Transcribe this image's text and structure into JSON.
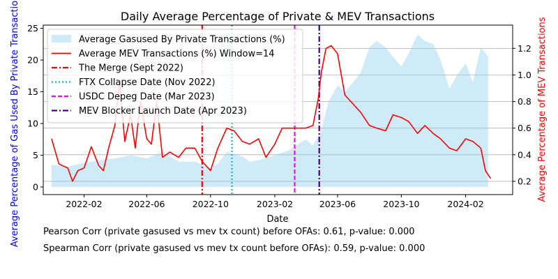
{
  "chart_data": {
    "type": "line",
    "title": "Daily Average Percentage of Private & MEV Transactions",
    "xlabel": "Date",
    "ylabel_left": "Average Percentage of Gas Used By Private Transactions",
    "ylabel_right": "Average Percentage of MEV Transactions",
    "x_ticks": [
      "2022-02",
      "2022-06",
      "2022-10",
      "2023-02",
      "2023-06",
      "2023-10",
      "2024-02"
    ],
    "x_range": [
      "2021-11-15",
      "2024-05-01"
    ],
    "y_left": {
      "range": [
        -1.2,
        25.5
      ],
      "ticks": [
        "0",
        "5",
        "10",
        "15",
        "20",
        "25"
      ]
    },
    "y_right": {
      "range": [
        0.1,
        1.375
      ],
      "ticks": [
        "0.2",
        "0.4",
        "0.6",
        "0.8",
        "1.0",
        "1.2"
      ]
    },
    "grid": "horizontal gridlines at right-axis ticks",
    "legend_position": "top-left",
    "series": [
      {
        "name": "Average Gasused By Private Transactions (%)",
        "kind": "area",
        "axis": "left",
        "color": "#87ceeb",
        "x": [
          "2021-12-01",
          "2022-01-01",
          "2022-02-01",
          "2022-03-01",
          "2022-04-01",
          "2022-05-01",
          "2022-06-01",
          "2022-07-01",
          "2022-08-01",
          "2022-09-01",
          "2022-09-15",
          "2022-10-01",
          "2022-10-15",
          "2022-11-01",
          "2022-11-15",
          "2022-12-01",
          "2022-12-15",
          "2023-01-01",
          "2023-02-01",
          "2023-03-01",
          "2023-04-01",
          "2023-04-15",
          "2023-05-01",
          "2023-05-15",
          "2023-06-01",
          "2023-06-15",
          "2023-07-01",
          "2023-07-15",
          "2023-08-01",
          "2023-08-15",
          "2023-09-01",
          "2023-09-15",
          "2023-10-01",
          "2023-10-15",
          "2023-11-01",
          "2023-11-15",
          "2023-12-01",
          "2023-12-15",
          "2024-01-01",
          "2024-01-15",
          "2024-02-01",
          "2024-02-15",
          "2024-03-01",
          "2024-03-15"
        ],
        "values": [
          3.5,
          3.2,
          3.8,
          4.2,
          4.5,
          5.0,
          4.5,
          5.5,
          4.0,
          4.0,
          3.5,
          3.0,
          3.6,
          5.5,
          5.2,
          4.8,
          4.0,
          4.2,
          5.0,
          5.8,
          7.5,
          6.5,
          9.0,
          13.5,
          16.0,
          15.0,
          16.5,
          18.0,
          22.0,
          23.0,
          22.0,
          20.5,
          19.0,
          21.0,
          24.0,
          23.0,
          22.5,
          20.0,
          15.5,
          17.5,
          19.5,
          16.5,
          22.0,
          20.5
        ]
      },
      {
        "name": "Average MEV Transactions (%) Window=14",
        "kind": "line",
        "axis": "right",
        "color": "#ff0000",
        "x": [
          "2021-12-01",
          "2021-12-15",
          "2022-01-01",
          "2022-01-10",
          "2022-01-20",
          "2022-02-01",
          "2022-02-15",
          "2022-03-01",
          "2022-03-10",
          "2022-03-20",
          "2022-04-01",
          "2022-04-10",
          "2022-04-20",
          "2022-05-01",
          "2022-05-10",
          "2022-05-20",
          "2022-06-01",
          "2022-06-10",
          "2022-06-20",
          "2022-07-01",
          "2022-07-15",
          "2022-08-01",
          "2022-08-15",
          "2022-09-01",
          "2022-09-15",
          "2022-10-01",
          "2022-10-15",
          "2022-11-01",
          "2022-11-15",
          "2022-12-01",
          "2022-12-15",
          "2023-01-01",
          "2023-01-15",
          "2023-02-01",
          "2023-02-15",
          "2023-03-01",
          "2023-03-15",
          "2023-04-01",
          "2023-04-15",
          "2023-04-25",
          "2023-05-01",
          "2023-05-10",
          "2023-05-20",
          "2023-06-01",
          "2023-06-15",
          "2023-07-01",
          "2023-07-15",
          "2023-08-01",
          "2023-08-15",
          "2023-09-01",
          "2023-09-15",
          "2023-10-01",
          "2023-10-15",
          "2023-11-01",
          "2023-11-15",
          "2023-12-01",
          "2023-12-15",
          "2024-01-01",
          "2024-01-15",
          "2024-02-01",
          "2024-02-15",
          "2024-03-01",
          "2024-03-10",
          "2024-03-20"
        ],
        "values": [
          0.52,
          0.33,
          0.3,
          0.2,
          0.28,
          0.3,
          0.46,
          0.32,
          0.28,
          0.45,
          0.62,
          0.95,
          0.5,
          0.7,
          0.45,
          0.8,
          0.52,
          0.48,
          0.8,
          0.38,
          0.42,
          0.38,
          0.45,
          0.45,
          0.35,
          0.28,
          0.45,
          0.6,
          0.58,
          0.5,
          0.48,
          0.52,
          0.38,
          0.48,
          0.6,
          0.6,
          0.6,
          0.6,
          0.62,
          0.82,
          1.02,
          1.2,
          1.22,
          1.16,
          0.85,
          0.78,
          0.72,
          0.62,
          0.6,
          0.58,
          0.7,
          0.68,
          0.65,
          0.56,
          0.62,
          0.56,
          0.52,
          0.45,
          0.43,
          0.52,
          0.5,
          0.45,
          0.28,
          0.22
        ]
      },
      {
        "name": "The Merge (Sept 2022)",
        "kind": "vline",
        "x": "2022-09-15",
        "color": "#ff0000",
        "dash": "dashdot"
      },
      {
        "name": "FTX Collapse Date (Nov 2022)",
        "kind": "vline",
        "x": "2022-11-11",
        "color": "#00bcd4",
        "dash": "dotted"
      },
      {
        "name": "USDC Depeg Date (Mar 2023)",
        "kind": "vline",
        "x": "2023-03-11",
        "color": "#ff00ff",
        "dash": "dashed"
      },
      {
        "name": "MEV Blocker Launch Date (Apr 2023)",
        "kind": "vline",
        "x": "2023-04-27",
        "color": "#4b0082",
        "dash": "dashdot"
      }
    ],
    "notes": [
      "Pearson Corr (private gasused vs mev tx count) before OFAs: 0.61, p-value: 0.000",
      "Spearman Corr (private gasused vs mev tx count before OFAs): 0.59, p-value: 0.000"
    ]
  }
}
